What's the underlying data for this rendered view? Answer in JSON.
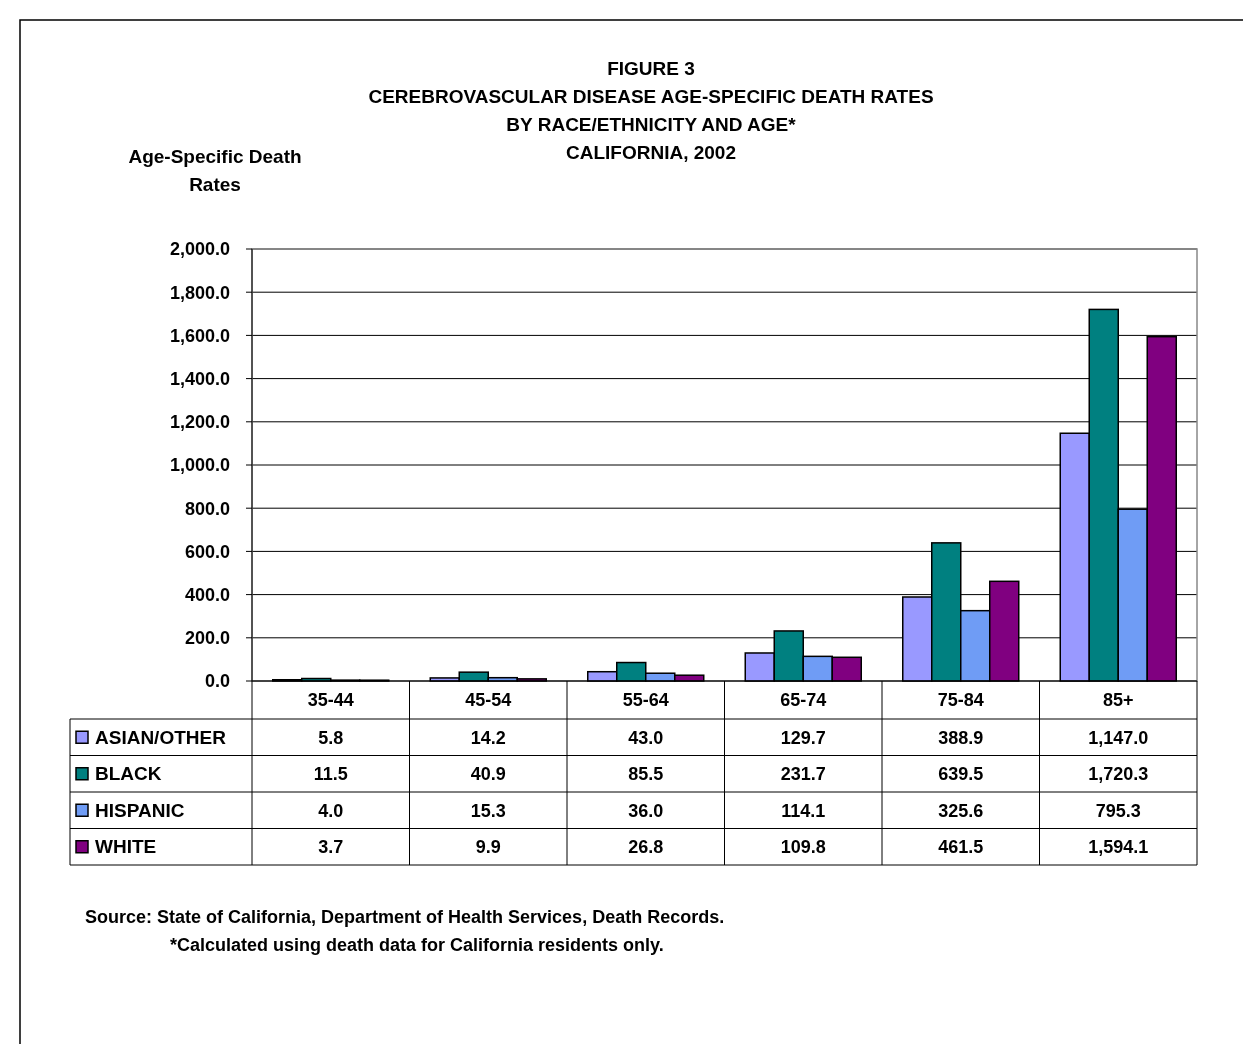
{
  "chart_data": {
    "type": "bar",
    "title": "FIGURE 3\nCEREBROVASCULAR DISEASE AGE-SPECIFIC  DEATH RATES\nBY RACE/ETHNICITY AND AGE*\nCALIFORNIA, 2002",
    "ylabel": "Age-Specific Death\nRates",
    "categories": [
      "35-44",
      "45-54",
      "55-64",
      "65-74",
      "75-84",
      "85+"
    ],
    "series": [
      {
        "name": "ASIAN/OTHER",
        "color": "#9999ff",
        "values": [
          5.8,
          14.2,
          43.0,
          129.7,
          388.9,
          1147.0
        ],
        "value_labels": [
          "5.8",
          "14.2",
          "43.0",
          "129.7",
          "388.9",
          "1,147.0"
        ]
      },
      {
        "name": "BLACK",
        "color": "#008080",
        "values": [
          11.5,
          40.9,
          85.5,
          231.7,
          639.5,
          1720.3
        ],
        "value_labels": [
          "11.5",
          "40.9",
          "85.5",
          "231.7",
          "639.5",
          "1,720.3"
        ]
      },
      {
        "name": "HISPANIC",
        "color": "#6f9cf5",
        "values": [
          4.0,
          15.3,
          36.0,
          114.1,
          325.6,
          795.3
        ],
        "value_labels": [
          "4.0",
          "15.3",
          "36.0",
          "114.1",
          "325.6",
          "795.3"
        ]
      },
      {
        "name": "WHITE",
        "color": "#800080",
        "values": [
          3.7,
          9.9,
          26.8,
          109.8,
          461.5,
          1594.1
        ],
        "value_labels": [
          "3.7",
          "9.9",
          "26.8",
          "109.8",
          "461.5",
          "1,594.1"
        ]
      }
    ],
    "ylim": [
      0,
      2000
    ],
    "yticks": [
      {
        "value": 0,
        "label": "0.0"
      },
      {
        "value": 200,
        "label": "200.0"
      },
      {
        "value": 400,
        "label": "400.0"
      },
      {
        "value": 600,
        "label": "600.0"
      },
      {
        "value": 800,
        "label": "800.0"
      },
      {
        "value": 1000,
        "label": "1,000.0"
      },
      {
        "value": 1200,
        "label": "1,200.0"
      },
      {
        "value": 1400,
        "label": "1,400.0"
      },
      {
        "value": 1600,
        "label": "1,600.0"
      },
      {
        "value": 1800,
        "label": "1,800.0"
      },
      {
        "value": 2000,
        "label": "2,000.0"
      }
    ],
    "grid": "y",
    "legend": "bottom left",
    "annotations": [
      "Source: State of California, Department of Health Services, Death Records.",
      "*Calculated using death data for California residents only."
    ]
  }
}
